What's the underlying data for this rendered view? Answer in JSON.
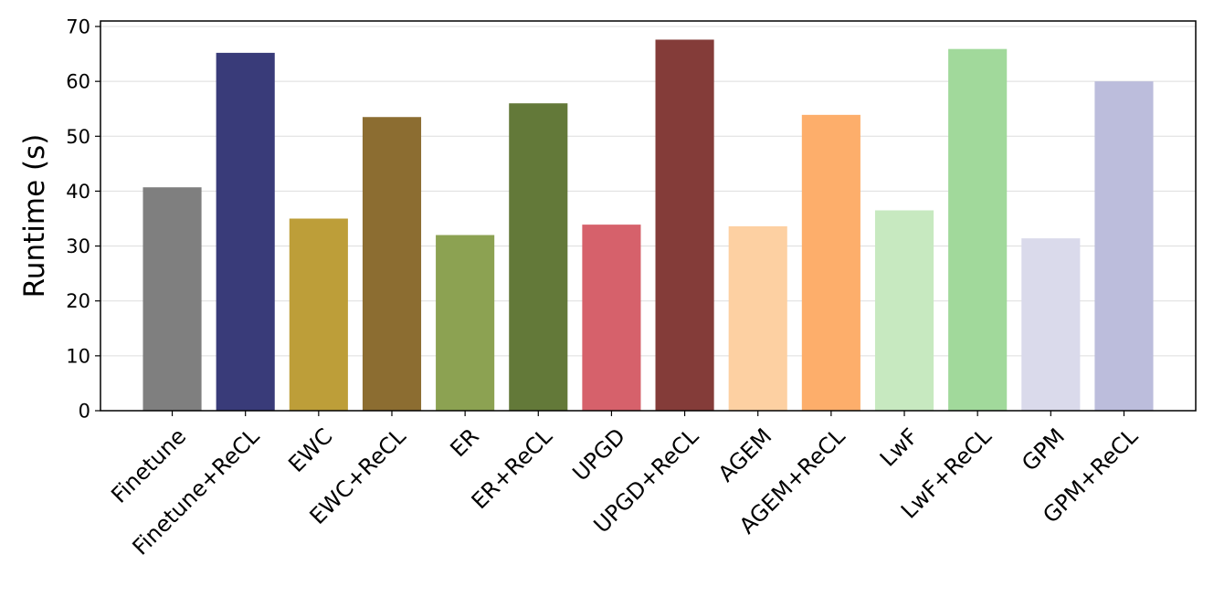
{
  "chart_data": {
    "type": "bar",
    "categories": [
      "Finetune",
      "Finetune+ReCL",
      "EWC",
      "EWC+ReCL",
      "ER",
      "ER+ReCL",
      "UPGD",
      "UPGD+ReCL",
      "AGEM",
      "AGEM+ReCL",
      "LwF",
      "LwF+ReCL",
      "GPM",
      "GPM+ReCL"
    ],
    "values": [
      40.7,
      65.2,
      35.0,
      53.5,
      32.0,
      56.0,
      33.9,
      67.6,
      33.6,
      53.9,
      36.5,
      65.9,
      31.4,
      60.0
    ],
    "colors": [
      "#7f7f7f",
      "#393b79",
      "#bd9e39",
      "#8c6d31",
      "#8ca252",
      "#637939",
      "#d6616b",
      "#843c39",
      "#fdd0a2",
      "#fdae6b",
      "#c7e9c0",
      "#a1d99b",
      "#dadaeb",
      "#bcbddc"
    ],
    "ylabel": "Runtime (s)",
    "xlabel": "",
    "ylim": [
      0,
      71
    ],
    "yticks": [
      0,
      10,
      20,
      30,
      40,
      50,
      60,
      70
    ],
    "grid": "horizontal"
  }
}
